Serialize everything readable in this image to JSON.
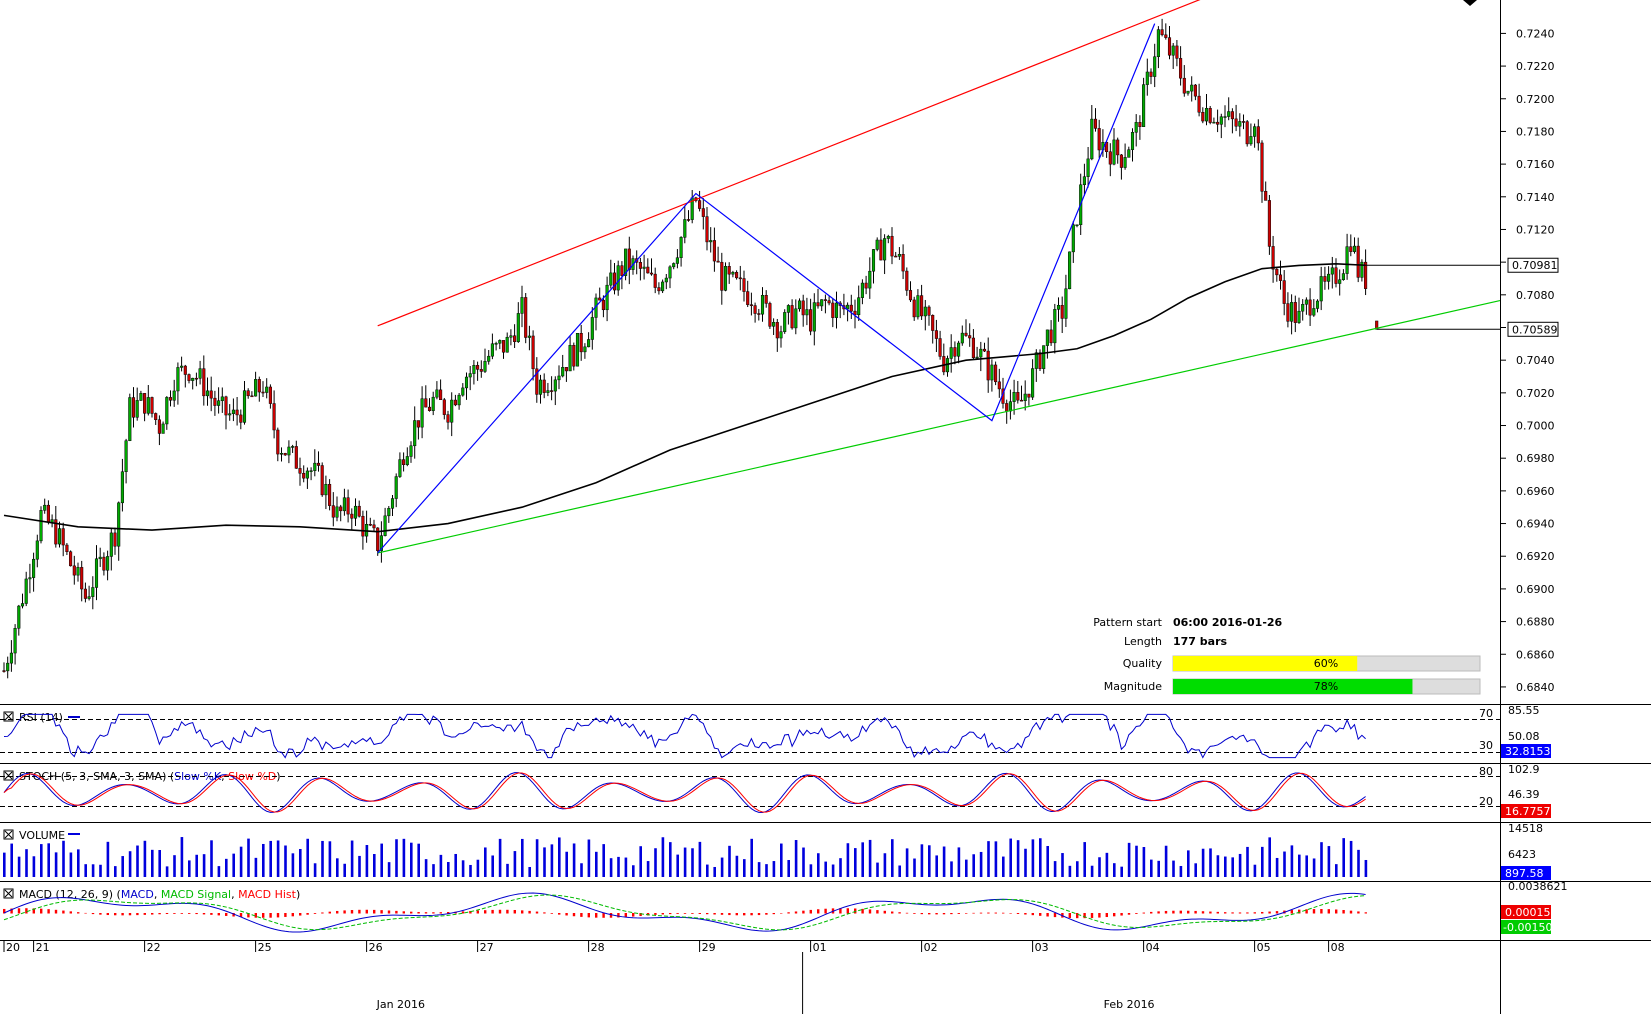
{
  "chart_data": {
    "type": "candlestick",
    "price_axis": {
      "ticks": [
        "0.7240",
        "0.7220",
        "0.7200",
        "0.7180",
        "0.7160",
        "0.7140",
        "0.7120",
        "0.7100",
        "0.7080",
        "0.7060",
        "0.7040",
        "0.7020",
        "0.7000",
        "0.6980",
        "0.6960",
        "0.6940",
        "0.6920",
        "0.6900",
        "0.6880",
        "0.6860",
        "0.6840"
      ],
      "range": [
        0.6832,
        0.7258
      ],
      "last_ma": "0.70981",
      "last_price": "0.70589"
    },
    "date_axis": {
      "day_labels": [
        "20",
        "21",
        "22",
        "25",
        "26",
        "27",
        "28",
        "29",
        "01",
        "02",
        "03",
        "04",
        "05",
        "08"
      ],
      "month_labels": [
        "Jan 2016",
        "Feb 2016"
      ]
    },
    "price_path": [
      [
        0,
        0.685
      ],
      [
        6,
        0.6905
      ],
      [
        10,
        0.6945
      ],
      [
        14,
        0.6935
      ],
      [
        18,
        0.6915
      ],
      [
        22,
        0.6895
      ],
      [
        26,
        0.6915
      ],
      [
        30,
        0.6935
      ],
      [
        34,
        0.701
      ],
      [
        38,
        0.7015
      ],
      [
        42,
        0.7
      ],
      [
        46,
        0.703
      ],
      [
        50,
        0.7035
      ],
      [
        54,
        0.7025
      ],
      [
        58,
        0.701
      ],
      [
        62,
        0.7005
      ],
      [
        66,
        0.7015
      ],
      [
        70,
        0.7025
      ],
      [
        74,
        0.699
      ],
      [
        78,
        0.698
      ],
      [
        82,
        0.6975
      ],
      [
        86,
        0.6965
      ],
      [
        90,
        0.6945
      ],
      [
        94,
        0.695
      ],
      [
        98,
        0.6935
      ],
      [
        101,
        0.6928
      ],
      [
        104,
        0.695
      ],
      [
        108,
        0.6985
      ],
      [
        112,
        0.7005
      ],
      [
        116,
        0.7015
      ],
      [
        120,
        0.701
      ],
      [
        124,
        0.703
      ],
      [
        128,
        0.7035
      ],
      [
        132,
        0.7045
      ],
      [
        136,
        0.705
      ],
      [
        140,
        0.707
      ],
      [
        144,
        0.7025
      ],
      [
        148,
        0.703
      ],
      [
        152,
        0.704
      ],
      [
        156,
        0.705
      ],
      [
        160,
        0.707
      ],
      [
        164,
        0.7085
      ],
      [
        168,
        0.71
      ],
      [
        172,
        0.7095
      ],
      [
        176,
        0.7085
      ],
      [
        180,
        0.71
      ],
      [
        184,
        0.712
      ],
      [
        187,
        0.7138
      ],
      [
        190,
        0.7115
      ],
      [
        194,
        0.709
      ],
      [
        198,
        0.7085
      ],
      [
        202,
        0.708
      ],
      [
        206,
        0.707
      ],
      [
        210,
        0.706
      ],
      [
        214,
        0.707
      ],
      [
        218,
        0.7065
      ],
      [
        222,
        0.7075
      ],
      [
        226,
        0.707
      ],
      [
        230,
        0.7075
      ],
      [
        234,
        0.7095
      ],
      [
        238,
        0.7115
      ],
      [
        242,
        0.71
      ],
      [
        246,
        0.7075
      ],
      [
        250,
        0.706
      ],
      [
        254,
        0.704
      ],
      [
        258,
        0.7055
      ],
      [
        262,
        0.705
      ],
      [
        266,
        0.7035
      ],
      [
        270,
        0.702
      ],
      [
        274,
        0.701
      ],
      [
        278,
        0.703
      ],
      [
        282,
        0.7055
      ],
      [
        286,
        0.707
      ],
      [
        290,
        0.713
      ],
      [
        294,
        0.718
      ],
      [
        298,
        0.717
      ],
      [
        302,
        0.7165
      ],
      [
        306,
        0.718
      ],
      [
        310,
        0.722
      ],
      [
        312,
        0.724
      ],
      [
        316,
        0.7225
      ],
      [
        320,
        0.7205
      ],
      [
        324,
        0.7195
      ],
      [
        328,
        0.719
      ],
      [
        332,
        0.7185
      ],
      [
        336,
        0.718
      ],
      [
        338,
        0.719
      ],
      [
        340,
        0.715
      ],
      [
        342,
        0.711
      ],
      [
        346,
        0.7075
      ],
      [
        350,
        0.7065
      ],
      [
        354,
        0.708
      ],
      [
        358,
        0.7085
      ],
      [
        362,
        0.71
      ],
      [
        364,
        0.7115
      ],
      [
        366,
        0.7095
      ],
      [
        368,
        0.709
      ]
    ],
    "ma_path": [
      [
        0,
        0.6945
      ],
      [
        20,
        0.6938
      ],
      [
        40,
        0.6936
      ],
      [
        60,
        0.6939
      ],
      [
        80,
        0.6938
      ],
      [
        101,
        0.6935
      ],
      [
        120,
        0.694
      ],
      [
        140,
        0.695
      ],
      [
        160,
        0.6965
      ],
      [
        180,
        0.6985
      ],
      [
        200,
        0.7
      ],
      [
        220,
        0.7015
      ],
      [
        240,
        0.703
      ],
      [
        260,
        0.704
      ],
      [
        270,
        0.7042
      ],
      [
        280,
        0.7044
      ],
      [
        290,
        0.7047
      ],
      [
        300,
        0.7055
      ],
      [
        310,
        0.7065
      ],
      [
        320,
        0.7078
      ],
      [
        330,
        0.7088
      ],
      [
        340,
        0.7096
      ],
      [
        350,
        0.7098
      ],
      [
        360,
        0.7099
      ],
      [
        368,
        0.70981
      ]
    ],
    "pattern": {
      "upper_line": [
        [
          101,
          0.7061
        ],
        [
          328,
          0.7265
        ]
      ],
      "lower_line": [
        [
          101,
          0.6922
        ],
        [
          370,
          0.7059
        ]
      ],
      "zigzag": [
        [
          101,
          0.6922
        ],
        [
          187,
          0.7142
        ],
        [
          267,
          0.7003
        ],
        [
          311,
          0.7246
        ]
      ]
    },
    "pattern_info": {
      "pattern_start_label": "Pattern start",
      "pattern_start_value": "06:00 2016-01-26",
      "length_label": "Length",
      "length_value": "177 bars",
      "quality_label": "Quality",
      "quality_value": "60%",
      "quality_fraction": 0.6,
      "magnitude_label": "Magnitude",
      "magnitude_value": "78%",
      "magnitude_fraction": 0.78
    },
    "indicators": {
      "rsi": {
        "title": "RSI (14)",
        "upper": "70",
        "lower": "30",
        "axis_value": "85.55",
        "axis_value2": "50.08",
        "last": "32.81537"
      },
      "stoch": {
        "title": "STOCH (5, 3, SMA, 3, SMA)",
        "series1": "Slow %K",
        "series2": "Slow %D",
        "upper": "80",
        "lower": "20",
        "axis_value": "102.9",
        "axis_value2": "46.39",
        "last": "16.77574"
      },
      "volume": {
        "title": "VOLUME",
        "axis_value": "14518",
        "axis_value2": "6423",
        "last": "897.58"
      },
      "macd": {
        "title": "MACD (12, 26, 9)",
        "series1": "MACD",
        "series2": "MACD Signal",
        "series3": "MACD Hist",
        "axis_value": "0.0038621",
        "last1": "0.0001545",
        "last2": "-0.0015078"
      }
    },
    "colors": {
      "bull": "#00aa00",
      "bear": "#cc0000",
      "upper_line": "#ff0000",
      "lower_line": "#00cc00",
      "zigzag": "#0000ff",
      "ma": "#000000",
      "quality_bar": "#ffff00",
      "magnitude_bar": "#00dd00",
      "indicator_line": "#0000cc",
      "signal_line": "#ff0000",
      "volume_bar": "#0000dd",
      "badge": "#0000ff",
      "badge_red": "#ee0000",
      "badge_green": "#00cc00"
    }
  }
}
